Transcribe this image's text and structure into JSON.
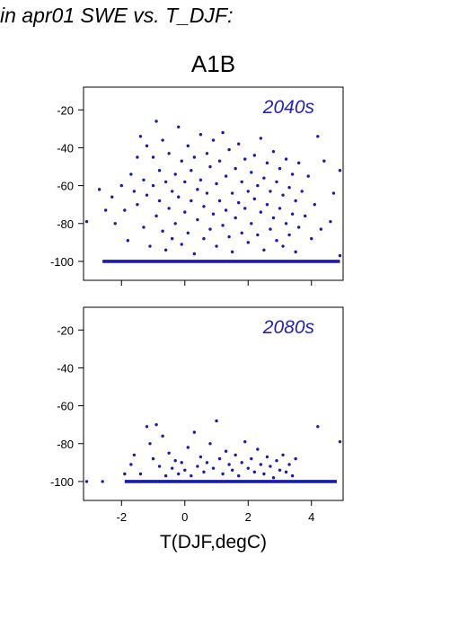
{
  "heading": "in apr01 SWE vs. T_DJF:",
  "subtitle": "A1B",
  "xlabel": "T(DJF,degC)",
  "colors": {
    "points": "#1a1ab0",
    "panel_label": "#2222b8",
    "axis": "#000000"
  },
  "chart_data": [
    {
      "type": "scatter",
      "label": "2040s",
      "xlim": [
        -3.2,
        5.0
      ],
      "ylim": [
        -110,
        -8
      ],
      "xticks": [
        -2,
        0,
        2,
        4
      ],
      "xticklabels": [],
      "yticks": [
        -100,
        -80,
        -60,
        -40,
        -20
      ],
      "yticklabels": [
        "-100",
        "-80",
        "-60",
        "-40",
        "-20"
      ],
      "grid": false,
      "points": [
        [
          -3.1,
          -79
        ],
        [
          -2.7,
          -62
        ],
        [
          -2.5,
          -73
        ],
        [
          -2.3,
          -66
        ],
        [
          -2.2,
          -80
        ],
        [
          -2.0,
          -60
        ],
        [
          -1.9,
          -73
        ],
        [
          -1.8,
          -89
        ],
        [
          -1.7,
          -54
        ],
        [
          -1.6,
          -63
        ],
        [
          -1.5,
          -45
        ],
        [
          -1.5,
          -70
        ],
        [
          -1.4,
          -34
        ],
        [
          -1.3,
          -57
        ],
        [
          -1.3,
          -82
        ],
        [
          -1.2,
          -39
        ],
        [
          -1.2,
          -65
        ],
        [
          -1.1,
          -92
        ],
        [
          -1.0,
          -45
        ],
        [
          -1.0,
          -60
        ],
        [
          -0.9,
          -76
        ],
        [
          -0.9,
          -26
        ],
        [
          -0.8,
          -52
        ],
        [
          -0.8,
          -68
        ],
        [
          -0.7,
          -36
        ],
        [
          -0.7,
          -84
        ],
        [
          -0.6,
          -58
        ],
        [
          -0.6,
          -94
        ],
        [
          -0.5,
          -43
        ],
        [
          -0.5,
          -72
        ],
        [
          -0.4,
          -63
        ],
        [
          -0.4,
          -88
        ],
        [
          -0.3,
          -54
        ],
        [
          -0.3,
          -80
        ],
        [
          -0.2,
          -29
        ],
        [
          -0.2,
          -66
        ],
        [
          -0.1,
          -47
        ],
        [
          -0.1,
          -91
        ],
        [
          0.0,
          -58
        ],
        [
          0.0,
          -74
        ],
        [
          0.1,
          -39
        ],
        [
          0.1,
          -85
        ],
        [
          0.2,
          -52
        ],
        [
          0.2,
          -68
        ],
        [
          0.3,
          -45
        ],
        [
          0.3,
          -96
        ],
        [
          0.4,
          -62
        ],
        [
          0.4,
          -78
        ],
        [
          0.5,
          -33
        ],
        [
          0.5,
          -57
        ],
        [
          0.6,
          -71
        ],
        [
          0.6,
          -88
        ],
        [
          0.7,
          -43
        ],
        [
          0.7,
          -64
        ],
        [
          0.8,
          -50
        ],
        [
          0.8,
          -83
        ],
        [
          0.9,
          -36
        ],
        [
          0.9,
          -75
        ],
        [
          1.0,
          -59
        ],
        [
          1.0,
          -92
        ],
        [
          1.1,
          -47
        ],
        [
          1.1,
          -68
        ],
        [
          1.2,
          -32
        ],
        [
          1.2,
          -81
        ],
        [
          1.3,
          -55
        ],
        [
          1.3,
          -73
        ],
        [
          1.4,
          -41
        ],
        [
          1.4,
          -87
        ],
        [
          1.5,
          -64
        ],
        [
          1.5,
          -95
        ],
        [
          1.6,
          -51
        ],
        [
          1.6,
          -77
        ],
        [
          1.7,
          -38
        ],
        [
          1.7,
          -69
        ],
        [
          1.8,
          -58
        ],
        [
          1.8,
          -85
        ],
        [
          1.9,
          -46
        ],
        [
          1.9,
          -72
        ],
        [
          2.0,
          -63
        ],
        [
          2.0,
          -90
        ],
        [
          2.1,
          -53
        ],
        [
          2.1,
          -80
        ],
        [
          2.2,
          -44
        ],
        [
          2.2,
          -67
        ],
        [
          2.3,
          -60
        ],
        [
          2.3,
          -86
        ],
        [
          2.4,
          -35
        ],
        [
          2.4,
          -74
        ],
        [
          2.5,
          -56
        ],
        [
          2.5,
          -94
        ],
        [
          2.6,
          -48
        ],
        [
          2.6,
          -70
        ],
        [
          2.7,
          -63
        ],
        [
          2.7,
          -83
        ],
        [
          2.8,
          -42
        ],
        [
          2.8,
          -77
        ],
        [
          2.9,
          -58
        ],
        [
          2.9,
          -89
        ],
        [
          3.0,
          -51
        ],
        [
          3.0,
          -72
        ],
        [
          3.1,
          -65
        ],
        [
          3.1,
          -92
        ],
        [
          3.2,
          -46
        ],
        [
          3.2,
          -80
        ],
        [
          3.3,
          -61
        ],
        [
          3.3,
          -86
        ],
        [
          3.4,
          -54
        ],
        [
          3.4,
          -75
        ],
        [
          3.5,
          -68
        ],
        [
          3.5,
          -95
        ],
        [
          3.6,
          -48
        ],
        [
          3.6,
          -82
        ],
        [
          3.7,
          -63
        ],
        [
          3.8,
          -76
        ],
        [
          3.9,
          -55
        ],
        [
          4.0,
          -88
        ],
        [
          4.1,
          -70
        ],
        [
          4.2,
          -34
        ],
        [
          4.3,
          -83
        ],
        [
          4.4,
          -47
        ],
        [
          4.6,
          -79
        ],
        [
          4.7,
          -64
        ],
        [
          4.9,
          -52
        ],
        [
          4.9,
          -97
        ]
      ],
      "floor_band": {
        "y": -100,
        "x": [
          -2.6,
          4.9
        ]
      }
    },
    {
      "type": "scatter",
      "label": "2080s",
      "xlim": [
        -3.2,
        5.0
      ],
      "ylim": [
        -110,
        -8
      ],
      "xticks": [
        -2,
        0,
        2,
        4
      ],
      "xticklabels": [
        "-2",
        "0",
        "2",
        "4"
      ],
      "yticks": [
        -100,
        -80,
        -60,
        -40,
        -20
      ],
      "yticklabels": [
        "-100",
        "-80",
        "-60",
        "-40",
        "-20"
      ],
      "grid": false,
      "points": [
        [
          -3.1,
          -100
        ],
        [
          -2.6,
          -100
        ],
        [
          -1.9,
          -96
        ],
        [
          -1.7,
          -91
        ],
        [
          -1.6,
          -86
        ],
        [
          -1.4,
          -96
        ],
        [
          -1.2,
          -71
        ],
        [
          -1.1,
          -80
        ],
        [
          -1.0,
          -88
        ],
        [
          -0.9,
          -70
        ],
        [
          -0.8,
          -92
        ],
        [
          -0.7,
          -76
        ],
        [
          -0.6,
          -97
        ],
        [
          -0.5,
          -85
        ],
        [
          -0.4,
          -93
        ],
        [
          -0.3,
          -89
        ],
        [
          -0.2,
          -96
        ],
        [
          -0.1,
          -90
        ],
        [
          0.0,
          -94
        ],
        [
          0.1,
          -82
        ],
        [
          0.2,
          -97
        ],
        [
          0.3,
          -74
        ],
        [
          0.4,
          -92
        ],
        [
          0.5,
          -87
        ],
        [
          0.6,
          -95
        ],
        [
          0.7,
          -90
        ],
        [
          0.8,
          -80
        ],
        [
          0.9,
          -93
        ],
        [
          1.0,
          -68
        ],
        [
          1.1,
          -88
        ],
        [
          1.2,
          -96
        ],
        [
          1.3,
          -84
        ],
        [
          1.4,
          -91
        ],
        [
          1.5,
          -94
        ],
        [
          1.6,
          -86
        ],
        [
          1.7,
          -97
        ],
        [
          1.8,
          -90
        ],
        [
          1.9,
          -79
        ],
        [
          2.0,
          -93
        ],
        [
          2.1,
          -88
        ],
        [
          2.2,
          -95
        ],
        [
          2.3,
          -83
        ],
        [
          2.4,
          -91
        ],
        [
          2.5,
          -96
        ],
        [
          2.6,
          -87
        ],
        [
          2.7,
          -92
        ],
        [
          2.8,
          -98
        ],
        [
          2.9,
          -89
        ],
        [
          3.0,
          -94
        ],
        [
          3.1,
          -86
        ],
        [
          3.2,
          -95
        ],
        [
          3.3,
          -91
        ],
        [
          3.4,
          -97
        ],
        [
          3.5,
          -88
        ],
        [
          4.2,
          -71
        ],
        [
          4.9,
          -79
        ]
      ],
      "floor_band": {
        "y": -100,
        "x": [
          -1.9,
          4.8
        ]
      }
    }
  ]
}
